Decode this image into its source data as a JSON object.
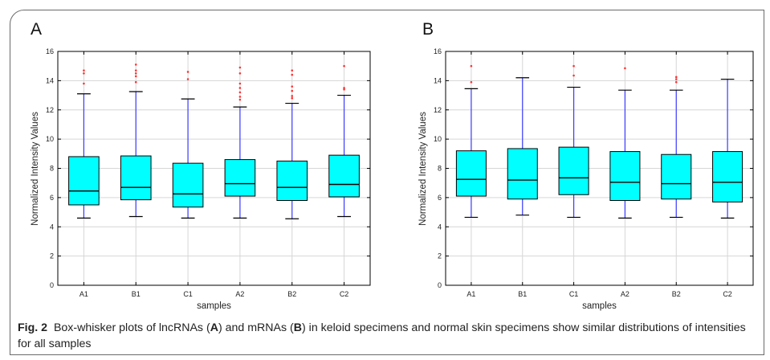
{
  "caption": {
    "label": "Fig. 2",
    "parts": [
      {
        "text": "Box-whisker plots of lncRNAs (",
        "bold": false
      },
      {
        "text": "A",
        "bold": true
      },
      {
        "text": ") and mRNAs (",
        "bold": false
      },
      {
        "text": "B",
        "bold": true
      },
      {
        "text": ") in keloid specimens and normal skin specimens show similar distributions of intensities for all samples",
        "bold": false
      }
    ]
  },
  "colors": {
    "box_fill": "#00ffff",
    "box_edge": "#000000",
    "whisker": "#3b3bff",
    "median": "#000000",
    "outlier": "#ff3333",
    "grid": "#d6d6d6"
  },
  "chart_data": [
    {
      "panel": "A",
      "type": "box",
      "xlabel": "samples",
      "ylabel": "Normalized Intensity Values",
      "categories": [
        "A1",
        "B1",
        "C1",
        "A2",
        "B2",
        "C2"
      ],
      "ylim": [
        0,
        16
      ],
      "yticks": [
        0,
        2,
        4,
        6,
        8,
        10,
        12,
        14,
        16
      ],
      "grid": true,
      "boxes": [
        {
          "whislo": 4.6,
          "q1": 5.5,
          "med": 6.45,
          "q3": 8.8,
          "whishi": 13.1,
          "fliers": [
            13.8,
            14.5,
            14.7
          ]
        },
        {
          "whislo": 4.7,
          "q1": 5.85,
          "med": 6.7,
          "q3": 8.85,
          "whishi": 13.25,
          "fliers": [
            13.9,
            14.3,
            14.5,
            14.7,
            15.1
          ]
        },
        {
          "whislo": 4.6,
          "q1": 5.35,
          "med": 6.25,
          "q3": 8.35,
          "whishi": 12.75,
          "fliers": [
            14.1,
            14.6
          ]
        },
        {
          "whislo": 4.6,
          "q1": 6.1,
          "med": 6.95,
          "q3": 8.6,
          "whishi": 12.2,
          "fliers": [
            12.7,
            12.9,
            13.2,
            13.5,
            13.8,
            14.5,
            14.9
          ]
        },
        {
          "whislo": 4.55,
          "q1": 5.8,
          "med": 6.7,
          "q3": 8.5,
          "whishi": 12.45,
          "fliers": [
            12.8,
            12.95,
            13.3,
            13.6,
            14.4,
            14.7
          ]
        },
        {
          "whislo": 4.7,
          "q1": 6.05,
          "med": 6.9,
          "q3": 8.9,
          "whishi": 13.0,
          "fliers": [
            13.4,
            13.5,
            15.0
          ]
        }
      ]
    },
    {
      "panel": "B",
      "type": "box",
      "xlabel": "samples",
      "ylabel": "Normalized Intensity Values",
      "categories": [
        "A1",
        "B1",
        "C1",
        "A2",
        "B2",
        "C2"
      ],
      "ylim": [
        0,
        16
      ],
      "yticks": [
        0,
        2,
        4,
        6,
        8,
        10,
        12,
        14,
        16
      ],
      "grid": true,
      "boxes": [
        {
          "whislo": 4.65,
          "q1": 6.1,
          "med": 7.25,
          "q3": 9.2,
          "whishi": 13.45,
          "fliers": [
            13.9,
            15.0
          ]
        },
        {
          "whislo": 4.8,
          "q1": 5.9,
          "med": 7.2,
          "q3": 9.35,
          "whishi": 14.2,
          "fliers": []
        },
        {
          "whislo": 4.65,
          "q1": 6.2,
          "med": 7.35,
          "q3": 9.45,
          "whishi": 13.55,
          "fliers": [
            14.35,
            15.0
          ]
        },
        {
          "whislo": 4.6,
          "q1": 5.8,
          "med": 7.05,
          "q3": 9.15,
          "whishi": 13.35,
          "fliers": [
            14.85
          ]
        },
        {
          "whislo": 4.65,
          "q1": 5.9,
          "med": 6.95,
          "q3": 8.95,
          "whishi": 13.35,
          "fliers": [
            13.9,
            14.1,
            14.25
          ]
        },
        {
          "whislo": 4.6,
          "q1": 5.7,
          "med": 7.05,
          "q3": 9.15,
          "whishi": 14.1,
          "fliers": []
        }
      ]
    }
  ]
}
